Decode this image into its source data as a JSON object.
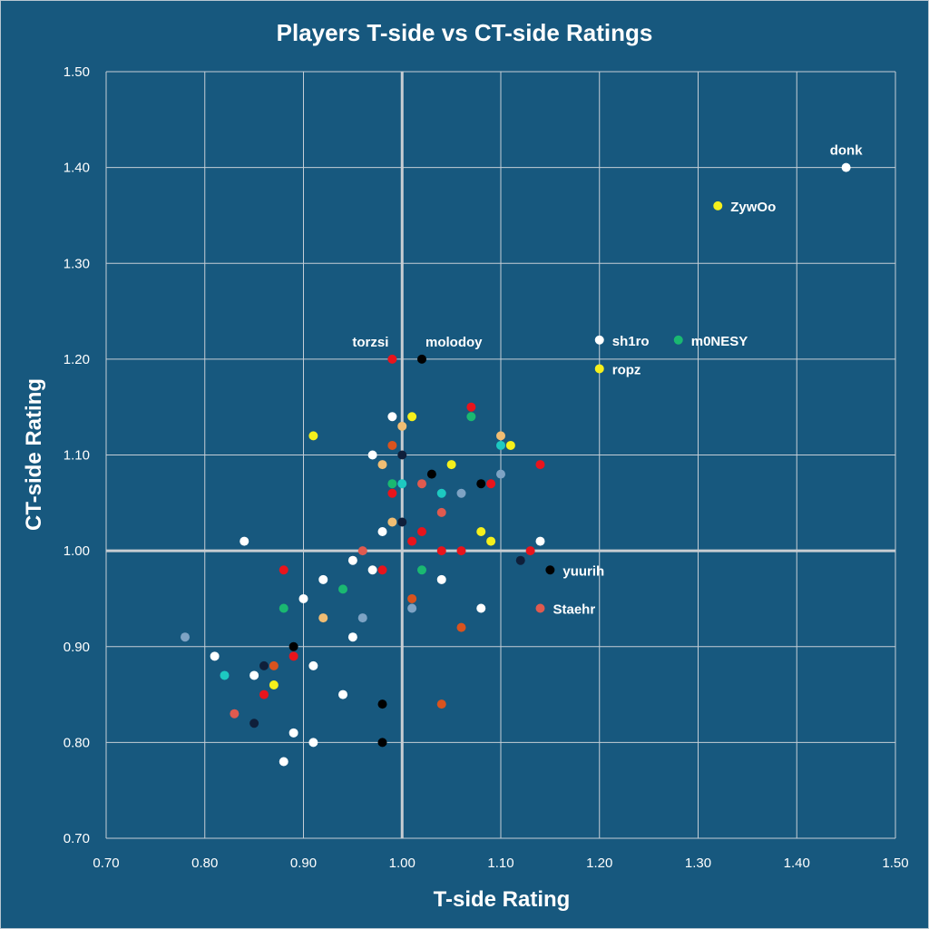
{
  "colors": {
    "background": "#17587e",
    "grid": "#c5ced6",
    "axis_line": "#c8cdd2",
    "text": "#ffffff"
  },
  "chart_data": {
    "type": "scatter",
    "title": "Players T-side vs CT-side Ratings",
    "xlabel": "T-side Rating",
    "ylabel": "CT-side Rating",
    "xlim": [
      0.7,
      1.5
    ],
    "ylim": [
      0.7,
      1.5
    ],
    "xticks": [
      "0.70",
      "0.80",
      "0.90",
      "1.00",
      "1.10",
      "1.20",
      "1.30",
      "1.40",
      "1.50"
    ],
    "yticks": [
      "0.70",
      "0.80",
      "0.90",
      "1.00",
      "1.10",
      "1.20",
      "1.30",
      "1.40",
      "1.50"
    ],
    "grid": true,
    "reference_lines": {
      "x": 1.0,
      "y": 1.0
    },
    "points": [
      {
        "x": 1.45,
        "y": 1.4,
        "color": "#ffffff",
        "label": "donk",
        "label_pos": "above"
      },
      {
        "x": 1.32,
        "y": 1.36,
        "color": "#f5f01c",
        "label": "ZywOo",
        "label_pos": "right"
      },
      {
        "x": 0.99,
        "y": 1.2,
        "color": "#e8141c",
        "label": "torzsi",
        "label_pos": "above-left"
      },
      {
        "x": 1.02,
        "y": 1.2,
        "color": "#000000",
        "label": "molodoy",
        "label_pos": "above-right"
      },
      {
        "x": 1.2,
        "y": 1.22,
        "color": "#ffffff",
        "label": "sh1ro",
        "label_pos": "right"
      },
      {
        "x": 1.28,
        "y": 1.22,
        "color": "#1ab871",
        "label": "m0NESY",
        "label_pos": "right"
      },
      {
        "x": 1.2,
        "y": 1.19,
        "color": "#f5f01c",
        "label": "ropz",
        "label_pos": "right"
      },
      {
        "x": 1.15,
        "y": 0.98,
        "color": "#000000",
        "label": "yuurih",
        "label_pos": "right"
      },
      {
        "x": 1.14,
        "y": 0.94,
        "color": "#e05a4f",
        "label": "Staehr",
        "label_pos": "right"
      },
      {
        "x": 1.07,
        "y": 1.15,
        "color": "#e8141c"
      },
      {
        "x": 0.99,
        "y": 1.14,
        "color": "#ffffff"
      },
      {
        "x": 1.01,
        "y": 1.14,
        "color": "#f5f01c"
      },
      {
        "x": 1.07,
        "y": 1.14,
        "color": "#1ab871"
      },
      {
        "x": 1.0,
        "y": 1.13,
        "color": "#f0bd73"
      },
      {
        "x": 0.91,
        "y": 1.12,
        "color": "#f5f01c"
      },
      {
        "x": 1.1,
        "y": 1.12,
        "color": "#f0bd73"
      },
      {
        "x": 0.99,
        "y": 1.11,
        "color": "#d9531e"
      },
      {
        "x": 1.1,
        "y": 1.11,
        "color": "#1dc9c1"
      },
      {
        "x": 1.11,
        "y": 1.11,
        "color": "#f5f01c"
      },
      {
        "x": 0.97,
        "y": 1.1,
        "color": "#ffffff"
      },
      {
        "x": 1.0,
        "y": 1.1,
        "color": "#0f1f3a"
      },
      {
        "x": 0.98,
        "y": 1.09,
        "color": "#f0bd73"
      },
      {
        "x": 1.05,
        "y": 1.09,
        "color": "#f5f01c"
      },
      {
        "x": 1.14,
        "y": 1.09,
        "color": "#e8141c"
      },
      {
        "x": 1.03,
        "y": 1.08,
        "color": "#000000"
      },
      {
        "x": 1.1,
        "y": 1.08,
        "color": "#7ea3c4"
      },
      {
        "x": 0.99,
        "y": 1.07,
        "color": "#1ab871"
      },
      {
        "x": 1.0,
        "y": 1.07,
        "color": "#1dc9c1"
      },
      {
        "x": 1.02,
        "y": 1.07,
        "color": "#e05a4f"
      },
      {
        "x": 1.08,
        "y": 1.07,
        "color": "#000000"
      },
      {
        "x": 1.09,
        "y": 1.07,
        "color": "#e8141c"
      },
      {
        "x": 0.99,
        "y": 1.06,
        "color": "#e8141c"
      },
      {
        "x": 1.04,
        "y": 1.06,
        "color": "#1dc9c1"
      },
      {
        "x": 1.06,
        "y": 1.06,
        "color": "#7ea3c4"
      },
      {
        "x": 1.04,
        "y": 1.04,
        "color": "#e05a4f"
      },
      {
        "x": 0.99,
        "y": 1.03,
        "color": "#f0bd73"
      },
      {
        "x": 1.0,
        "y": 1.03,
        "color": "#0f1f3a"
      },
      {
        "x": 0.98,
        "y": 1.02,
        "color": "#ffffff"
      },
      {
        "x": 1.02,
        "y": 1.02,
        "color": "#e8141c"
      },
      {
        "x": 1.08,
        "y": 1.02,
        "color": "#f5f01c"
      },
      {
        "x": 0.84,
        "y": 1.01,
        "color": "#ffffff"
      },
      {
        "x": 1.01,
        "y": 1.01,
        "color": "#e8141c"
      },
      {
        "x": 1.09,
        "y": 1.01,
        "color": "#f5f01c"
      },
      {
        "x": 1.14,
        "y": 1.01,
        "color": "#ffffff"
      },
      {
        "x": 0.96,
        "y": 1.0,
        "color": "#e05a4f"
      },
      {
        "x": 1.04,
        "y": 1.0,
        "color": "#e8141c"
      },
      {
        "x": 1.06,
        "y": 1.0,
        "color": "#e8141c"
      },
      {
        "x": 1.13,
        "y": 1.0,
        "color": "#e8141c"
      },
      {
        "x": 0.95,
        "y": 0.99,
        "color": "#ffffff"
      },
      {
        "x": 1.12,
        "y": 0.99,
        "color": "#0f1f3a"
      },
      {
        "x": 0.88,
        "y": 0.98,
        "color": "#e8141c"
      },
      {
        "x": 0.97,
        "y": 0.98,
        "color": "#ffffff"
      },
      {
        "x": 0.98,
        "y": 0.98,
        "color": "#e8141c"
      },
      {
        "x": 1.02,
        "y": 0.98,
        "color": "#1ab871"
      },
      {
        "x": 0.92,
        "y": 0.97,
        "color": "#ffffff"
      },
      {
        "x": 1.04,
        "y": 0.97,
        "color": "#ffffff"
      },
      {
        "x": 0.94,
        "y": 0.96,
        "color": "#1ab871"
      },
      {
        "x": 0.9,
        "y": 0.95,
        "color": "#ffffff"
      },
      {
        "x": 1.01,
        "y": 0.95,
        "color": "#d9531e"
      },
      {
        "x": 0.88,
        "y": 0.94,
        "color": "#1ab871"
      },
      {
        "x": 1.01,
        "y": 0.94,
        "color": "#7ea3c4"
      },
      {
        "x": 1.08,
        "y": 0.94,
        "color": "#ffffff"
      },
      {
        "x": 0.92,
        "y": 0.93,
        "color": "#f0bd73"
      },
      {
        "x": 0.96,
        "y": 0.93,
        "color": "#7ea3c4"
      },
      {
        "x": 1.06,
        "y": 0.92,
        "color": "#d9531e"
      },
      {
        "x": 0.78,
        "y": 0.91,
        "color": "#7ea3c4"
      },
      {
        "x": 0.95,
        "y": 0.91,
        "color": "#ffffff"
      },
      {
        "x": 0.89,
        "y": 0.9,
        "color": "#000000"
      },
      {
        "x": 0.81,
        "y": 0.89,
        "color": "#ffffff"
      },
      {
        "x": 0.89,
        "y": 0.89,
        "color": "#e8141c"
      },
      {
        "x": 0.86,
        "y": 0.88,
        "color": "#0f1f3a"
      },
      {
        "x": 0.87,
        "y": 0.88,
        "color": "#d9531e"
      },
      {
        "x": 0.91,
        "y": 0.88,
        "color": "#ffffff"
      },
      {
        "x": 0.82,
        "y": 0.87,
        "color": "#1dc9c1"
      },
      {
        "x": 0.85,
        "y": 0.87,
        "color": "#ffffff"
      },
      {
        "x": 0.87,
        "y": 0.86,
        "color": "#f5f01c"
      },
      {
        "x": 0.86,
        "y": 0.85,
        "color": "#e8141c"
      },
      {
        "x": 0.94,
        "y": 0.85,
        "color": "#ffffff"
      },
      {
        "x": 0.98,
        "y": 0.84,
        "color": "#000000"
      },
      {
        "x": 1.04,
        "y": 0.84,
        "color": "#d9531e"
      },
      {
        "x": 0.83,
        "y": 0.83,
        "color": "#e05a4f"
      },
      {
        "x": 0.85,
        "y": 0.82,
        "color": "#0f1f3a"
      },
      {
        "x": 0.89,
        "y": 0.81,
        "color": "#ffffff"
      },
      {
        "x": 0.91,
        "y": 0.8,
        "color": "#ffffff"
      },
      {
        "x": 0.98,
        "y": 0.8,
        "color": "#000000"
      },
      {
        "x": 0.88,
        "y": 0.78,
        "color": "#ffffff"
      }
    ]
  }
}
